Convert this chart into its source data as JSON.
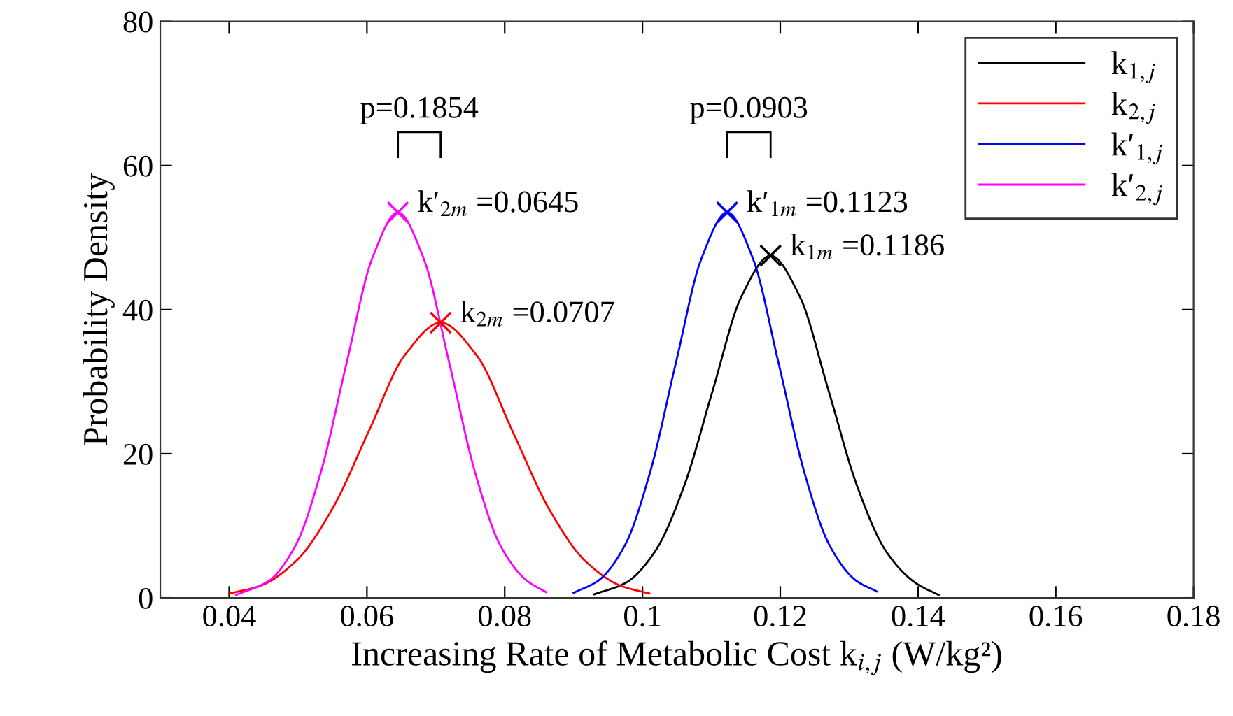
{
  "chart_data": {
    "type": "line",
    "xlabel": "Increasing Rate of Metabolic Cost k$_{i,j}$ (W/kg²)",
    "ylabel": "Probability Density",
    "xlim": [
      0.03,
      0.18
    ],
    "xticks": [
      0.04,
      0.06,
      0.08,
      0.1,
      0.12,
      0.14,
      0.16,
      0.18
    ],
    "ylim": [
      0,
      80
    ],
    "yticks": [
      0,
      20,
      40,
      60,
      80
    ],
    "grid": false,
    "legend": "top right",
    "line_style": "solid",
    "marker": "none",
    "series": [
      {
        "name": "k$_{1,j}$",
        "color": "#000000",
        "x": [
          0.093,
          0.0976,
          0.1018,
          0.106,
          0.1102,
          0.1144,
          0.1186,
          0.1228,
          0.127,
          0.1312,
          0.1354,
          0.1396,
          0.143
        ],
        "values": [
          0.5,
          2.1,
          6.4,
          15.4,
          28.8,
          41.9,
          47.5,
          41.9,
          28.8,
          15.4,
          6.4,
          2.1,
          0.4
        ]
      },
      {
        "name": "k$_{2,j}$",
        "color": "#ff0000",
        "x": [
          0.04,
          0.0446,
          0.0498,
          0.055,
          0.0603,
          0.0655,
          0.0707,
          0.0759,
          0.0811,
          0.0864,
          0.0916,
          0.0968,
          0.101
        ],
        "values": [
          0.6,
          1.7,
          5.2,
          12.4,
          23.2,
          33.7,
          38.2,
          33.7,
          23.2,
          12.4,
          5.2,
          1.7,
          0.6
        ]
      },
      {
        "name": "k′$_{1,j}$",
        "color": "#0000ff",
        "x": [
          0.09,
          0.0936,
          0.0974,
          0.1011,
          0.1048,
          0.1086,
          0.1123,
          0.116,
          0.1198,
          0.1235,
          0.1272,
          0.131,
          0.134
        ],
        "values": [
          0.7,
          2.4,
          7.2,
          17.4,
          32.4,
          47.2,
          53.5,
          47.2,
          32.4,
          17.4,
          7.2,
          2.4,
          0.9
        ]
      },
      {
        "name": "k′$_{2,j}$",
        "color": "#ff00ff",
        "x": [
          0.041,
          0.0458,
          0.0496,
          0.0533,
          0.057,
          0.0608,
          0.0645,
          0.0682,
          0.072,
          0.0757,
          0.0794,
          0.0832,
          0.086
        ],
        "values": [
          0.4,
          2.4,
          7.2,
          17.4,
          32.4,
          47.2,
          53.5,
          47.2,
          32.4,
          17.4,
          7.2,
          2.4,
          0.8
        ]
      },
      {
        "type": "scatter",
        "marker": "cross",
        "color": "#000000",
        "x": [
          0.1186
        ],
        "values": [
          47.5
        ]
      },
      {
        "type": "scatter",
        "marker": "cross",
        "color": "#ff0000",
        "x": [
          0.0707
        ],
        "values": [
          38.2
        ]
      },
      {
        "type": "scatter",
        "marker": "cross",
        "color": "#0000ff",
        "x": [
          0.1123
        ],
        "values": [
          53.5
        ]
      },
      {
        "type": "scatter",
        "marker": "cross",
        "color": "#ff00ff",
        "x": [
          0.0645
        ],
        "values": [
          53.5
        ]
      }
    ],
    "annotations": [
      {
        "text": "k′$_{2m}$ =0.0645",
        "x": 0.0645,
        "y": 53.5
      },
      {
        "text": "k$_{2m}$ =0.0707",
        "x": 0.0707,
        "y": 38.2
      },
      {
        "text": "k′$_{1m}$ =0.1123",
        "x": 0.1123,
        "y": 53.5
      },
      {
        "text": "k$_{1m}$ =0.1186",
        "x": 0.1186,
        "y": 47.5
      },
      "p=0.1854",
      "p=0.0903"
    ]
  }
}
